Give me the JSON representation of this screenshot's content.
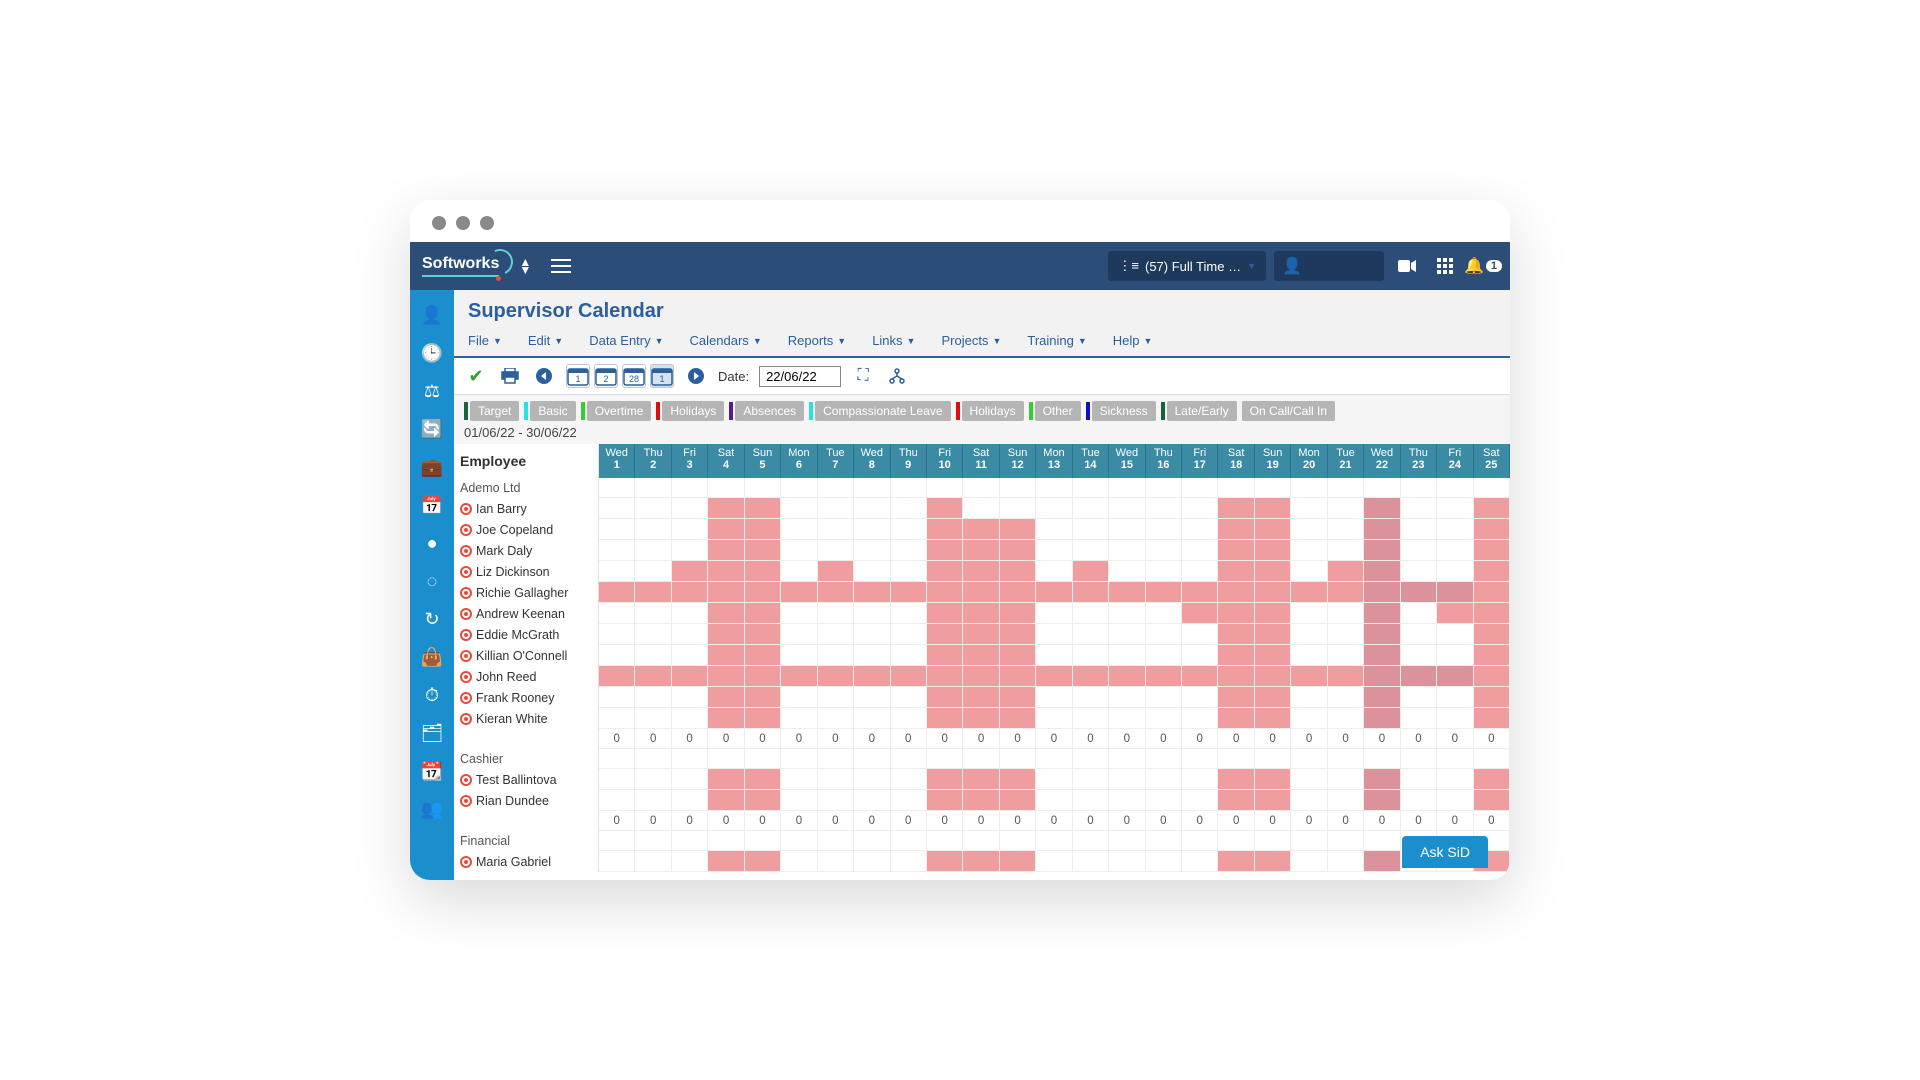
{
  "brand": "Softworks",
  "topbar": {
    "filter_label": "(57) Full Time …",
    "notif_count": "1"
  },
  "page_title": "Supervisor Calendar",
  "menu": [
    "File",
    "Edit",
    "Data Entry",
    "Calendars",
    "Reports",
    "Links",
    "Projects",
    "Training",
    "Help"
  ],
  "toolbar": {
    "date_label": "Date:",
    "date_value": "22/06/22",
    "boxes": [
      "1",
      "2",
      "28",
      "1"
    ]
  },
  "legend": [
    {
      "label": "Target",
      "bar": "#13663b"
    },
    {
      "label": "Basic",
      "bar": "#27e2e2"
    },
    {
      "label": "Overtime",
      "bar": "#2fd12f"
    },
    {
      "label": "Holidays",
      "bar": "#e30b0b"
    },
    {
      "label": "Absences",
      "bar": "#5a1c8b"
    },
    {
      "label": "Compassionate Leave",
      "bar": "#27e2e2"
    },
    {
      "label": "Holidays",
      "bar": "#e30b0b"
    },
    {
      "label": "Other",
      "bar": "#2fd12f"
    },
    {
      "label": "Sickness",
      "bar": "#1010c0"
    },
    {
      "label": "Late/Early",
      "bar": "#13663b"
    },
    {
      "label": "On Call/Call In",
      "bar": null
    }
  ],
  "date_range": "01/06/22 - 30/06/22",
  "employee_header": "Employee",
  "day_headers": [
    {
      "d": "Wed",
      "n": "1"
    },
    {
      "d": "Thu",
      "n": "2"
    },
    {
      "d": "Fri",
      "n": "3"
    },
    {
      "d": "Sat",
      "n": "4"
    },
    {
      "d": "Sun",
      "n": "5"
    },
    {
      "d": "Mon",
      "n": "6"
    },
    {
      "d": "Tue",
      "n": "7"
    },
    {
      "d": "Wed",
      "n": "8"
    },
    {
      "d": "Thu",
      "n": "9"
    },
    {
      "d": "Fri",
      "n": "10"
    },
    {
      "d": "Sat",
      "n": "11"
    },
    {
      "d": "Sun",
      "n": "12"
    },
    {
      "d": "Mon",
      "n": "13"
    },
    {
      "d": "Tue",
      "n": "14"
    },
    {
      "d": "Wed",
      "n": "15"
    },
    {
      "d": "Thu",
      "n": "16"
    },
    {
      "d": "Fri",
      "n": "17"
    },
    {
      "d": "Sat",
      "n": "18"
    },
    {
      "d": "Sun",
      "n": "19"
    },
    {
      "d": "Mon",
      "n": "20"
    },
    {
      "d": "Tue",
      "n": "21"
    },
    {
      "d": "Wed",
      "n": "22"
    },
    {
      "d": "Thu",
      "n": "23"
    },
    {
      "d": "Fri",
      "n": "24"
    },
    {
      "d": "Sat",
      "n": "25"
    }
  ],
  "groups": [
    {
      "name": "Ademo Ltd",
      "employees": [
        {
          "name": "Ian Barry",
          "cells": [
            0,
            0,
            0,
            1,
            1,
            0,
            0,
            0,
            0,
            1,
            0,
            0,
            0,
            0,
            0,
            0,
            0,
            1,
            1,
            0,
            0,
            2,
            0,
            0,
            1
          ]
        },
        {
          "name": "Joe Copeland",
          "cells": [
            0,
            0,
            0,
            1,
            1,
            0,
            0,
            0,
            0,
            1,
            1,
            1,
            0,
            0,
            0,
            0,
            0,
            1,
            1,
            0,
            0,
            2,
            0,
            0,
            1
          ]
        },
        {
          "name": "Mark Daly",
          "cells": [
            0,
            0,
            0,
            1,
            1,
            0,
            0,
            0,
            0,
            1,
            1,
            1,
            0,
            0,
            0,
            0,
            0,
            1,
            1,
            0,
            0,
            2,
            0,
            0,
            1
          ]
        },
        {
          "name": "Liz Dickinson",
          "cells": [
            0,
            0,
            1,
            1,
            1,
            0,
            1,
            0,
            0,
            1,
            1,
            1,
            0,
            1,
            0,
            0,
            0,
            1,
            1,
            0,
            1,
            2,
            0,
            0,
            1
          ]
        },
        {
          "name": "Richie Gallagher",
          "cells": [
            1,
            1,
            1,
            1,
            1,
            1,
            1,
            1,
            1,
            1,
            1,
            1,
            1,
            1,
            1,
            1,
            1,
            1,
            1,
            1,
            1,
            2,
            2,
            2,
            1
          ]
        },
        {
          "name": "Andrew Keenan",
          "cells": [
            0,
            0,
            0,
            1,
            1,
            0,
            0,
            0,
            0,
            1,
            1,
            1,
            0,
            0,
            0,
            0,
            1,
            1,
            1,
            0,
            0,
            2,
            0,
            1,
            1
          ]
        },
        {
          "name": "Eddie McGrath",
          "cells": [
            0,
            0,
            0,
            1,
            1,
            0,
            0,
            0,
            0,
            1,
            1,
            1,
            0,
            0,
            0,
            0,
            0,
            1,
            1,
            0,
            0,
            2,
            0,
            0,
            1
          ]
        },
        {
          "name": "Killian O'Connell",
          "cells": [
            0,
            0,
            0,
            1,
            1,
            0,
            0,
            0,
            0,
            1,
            1,
            1,
            0,
            0,
            0,
            0,
            0,
            1,
            1,
            0,
            0,
            2,
            0,
            0,
            1
          ]
        },
        {
          "name": "John Reed",
          "cells": [
            1,
            1,
            1,
            1,
            1,
            1,
            1,
            1,
            1,
            1,
            1,
            1,
            1,
            1,
            1,
            1,
            1,
            1,
            1,
            1,
            1,
            2,
            2,
            2,
            1
          ]
        },
        {
          "name": "Frank Rooney",
          "cells": [
            0,
            0,
            0,
            1,
            1,
            0,
            0,
            0,
            0,
            1,
            1,
            1,
            0,
            0,
            0,
            0,
            0,
            1,
            1,
            0,
            0,
            2,
            0,
            0,
            1
          ]
        },
        {
          "name": "Kieran White",
          "cells": [
            0,
            0,
            0,
            1,
            1,
            0,
            0,
            0,
            0,
            1,
            1,
            1,
            0,
            0,
            0,
            0,
            0,
            1,
            1,
            0,
            0,
            2,
            0,
            0,
            1
          ]
        }
      ],
      "sums": [
        "0",
        "0",
        "0",
        "0",
        "0",
        "0",
        "0",
        "0",
        "0",
        "0",
        "0",
        "0",
        "0",
        "0",
        "0",
        "0",
        "0",
        "0",
        "0",
        "0",
        "0",
        "0",
        "0",
        "0",
        "0"
      ]
    },
    {
      "name": "Cashier",
      "employees": [
        {
          "name": "Test Ballintova",
          "cells": [
            0,
            0,
            0,
            1,
            1,
            0,
            0,
            0,
            0,
            1,
            1,
            1,
            0,
            0,
            0,
            0,
            0,
            1,
            1,
            0,
            0,
            2,
            0,
            0,
            1
          ]
        },
        {
          "name": "Rian Dundee",
          "cells": [
            0,
            0,
            0,
            1,
            1,
            0,
            0,
            0,
            0,
            1,
            1,
            1,
            0,
            0,
            0,
            0,
            0,
            1,
            1,
            0,
            0,
            2,
            0,
            0,
            1
          ]
        }
      ],
      "sums": [
        "0",
        "0",
        "0",
        "0",
        "0",
        "0",
        "0",
        "0",
        "0",
        "0",
        "0",
        "0",
        "0",
        "0",
        "0",
        "0",
        "0",
        "0",
        "0",
        "0",
        "0",
        "0",
        "0",
        "0",
        "0"
      ]
    },
    {
      "name": "Financial",
      "employees": [
        {
          "name": "Maria Gabriel",
          "cells": [
            0,
            0,
            0,
            1,
            1,
            0,
            0,
            0,
            0,
            1,
            1,
            1,
            0,
            0,
            0,
            0,
            0,
            1,
            1,
            0,
            0,
            2,
            0,
            0,
            1
          ]
        }
      ],
      "sums": []
    }
  ],
  "ask_sid": "Ask SiD",
  "sidebar_icons": [
    "user-icon",
    "clock-icon",
    "scales-icon",
    "refresh-clock-icon",
    "briefcase-icon",
    "calendar-grid-icon",
    "person-dot-icon",
    "dashed-box-icon",
    "sync-icon",
    "bag-icon",
    "bag-clock-icon",
    "card-user-icon",
    "calendar-user-icon",
    "people-icon"
  ],
  "colors": {
    "topbar_bg": "#2c4d78",
    "sidebar_bg": "#1b8fce",
    "day_header_bg": "#3a8ba3",
    "fill": "#f09d9f",
    "fill_today": "#db929a",
    "accent": "#1b8fce"
  }
}
